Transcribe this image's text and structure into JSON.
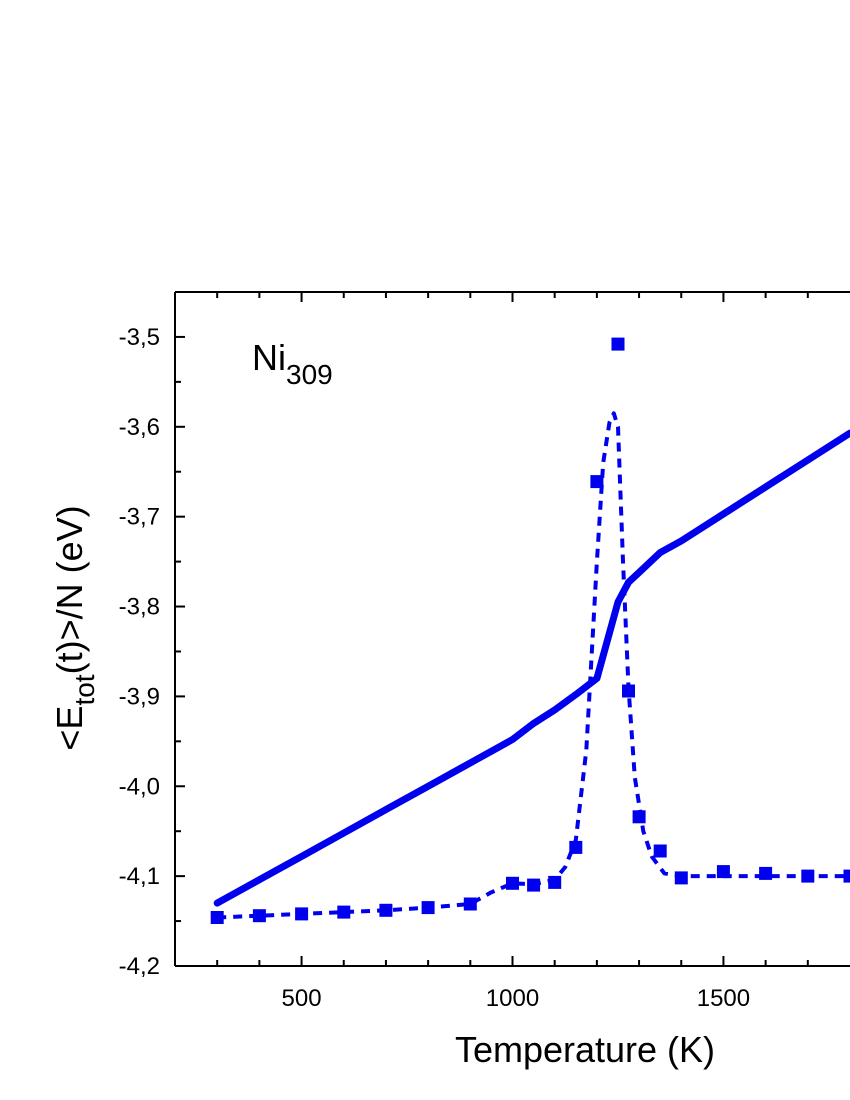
{
  "chart_data": {
    "type": "scatter",
    "xlabel": "Temperature (K)",
    "ylabel": {
      "prefix": "<E",
      "subscript": "tot",
      "suffix": "(t)>/N (eV)"
    },
    "annotation": {
      "base": "Ni",
      "subscript": "309"
    },
    "xlim": [
      200,
      1800
    ],
    "ylim": [
      -4.2,
      -3.45
    ],
    "x_ticks": [
      {
        "value": 500,
        "label": "500"
      },
      {
        "value": 1000,
        "label": "1000"
      },
      {
        "value": 1500,
        "label": "1500"
      }
    ],
    "y_ticks": [
      {
        "value": -3.5,
        "label": "-3,5"
      },
      {
        "value": -3.6,
        "label": "-3,6"
      },
      {
        "value": -3.7,
        "label": "-3,7"
      },
      {
        "value": -3.8,
        "label": "-3,8"
      },
      {
        "value": -3.9,
        "label": "-3,9"
      },
      {
        "value": -4.0,
        "label": "-4,0"
      },
      {
        "value": -4.1,
        "label": "-4,1"
      },
      {
        "value": -4.2,
        "label": "-4,2"
      }
    ],
    "series": [
      {
        "style": "solid-line",
        "color": "#0000ee",
        "x": [
          300,
          400,
          500,
          600,
          700,
          800,
          900,
          1000,
          1050,
          1100,
          1150,
          1200,
          1250,
          1275,
          1300,
          1350,
          1400,
          1500,
          1600,
          1700,
          1800
        ],
        "y": [
          -4.13,
          -4.104,
          -4.078,
          -4.052,
          -4.026,
          -4.0,
          -3.974,
          -3.948,
          -3.93,
          -3.915,
          -3.898,
          -3.88,
          -3.795,
          -3.773,
          -3.762,
          -3.74,
          -3.727,
          -3.697,
          -3.667,
          -3.637,
          -3.607
        ]
      },
      {
        "style": "square-markers",
        "color": "#0000ee",
        "x": [
          300,
          400,
          500,
          600,
          700,
          800,
          900,
          1000,
          1050,
          1100,
          1150,
          1200,
          1250,
          1275,
          1300,
          1350,
          1400,
          1500,
          1600,
          1700,
          1800
        ],
        "y": [
          -4.146,
          -4.144,
          -4.142,
          -4.14,
          -4.138,
          -4.135,
          -4.131,
          -4.108,
          -4.11,
          -4.107,
          -4.068,
          -3.661,
          -3.508,
          -3.894,
          -4.034,
          -4.072,
          -4.102,
          -4.095,
          -4.097,
          -4.1,
          -4.1
        ]
      },
      {
        "style": "dashed-fit",
        "color": "#0000ee",
        "x": [
          300,
          400,
          500,
          600,
          700,
          800,
          900,
          950,
          1000,
          1050,
          1100,
          1125,
          1150,
          1175,
          1200,
          1215,
          1230,
          1240,
          1250,
          1262,
          1275,
          1290,
          1310,
          1330,
          1360,
          1400,
          1500,
          1600,
          1700,
          1800
        ],
        "y": [
          -4.146,
          -4.144,
          -4.142,
          -4.14,
          -4.138,
          -4.135,
          -4.131,
          -4.118,
          -4.108,
          -4.109,
          -4.104,
          -4.09,
          -4.06,
          -3.96,
          -3.75,
          -3.64,
          -3.595,
          -3.585,
          -3.6,
          -3.75,
          -3.89,
          -3.99,
          -4.05,
          -4.078,
          -4.097,
          -4.1,
          -4.1,
          -4.1,
          -4.1,
          -4.1
        ]
      }
    ]
  }
}
